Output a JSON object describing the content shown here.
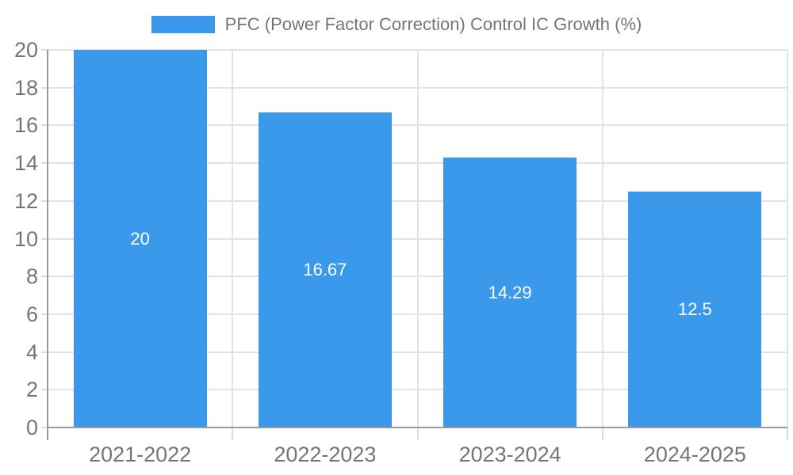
{
  "chart_data": {
    "type": "bar",
    "title": "PFC (Power Factor Correction) Control IC Growth (%)",
    "categories": [
      "2021-2022",
      "2022-2023",
      "2023-2024",
      "2024-2025"
    ],
    "values": [
      20,
      16.67,
      14.29,
      12.5
    ],
    "value_labels": [
      "20",
      "16.67",
      "14.29",
      "12.5"
    ],
    "xlabel": "",
    "ylabel": "",
    "ylim": [
      0,
      20
    ],
    "ytick_step": 2,
    "ytick_labels": [
      "0",
      "2",
      "4",
      "6",
      "8",
      "10",
      "12",
      "14",
      "16",
      "18",
      "20"
    ],
    "grid": true,
    "legend_position": "top-center",
    "colors": {
      "bar": "#3b99ec",
      "bar_label": "#ffffff",
      "axis_line": "#9a9a9a",
      "gridline": "#e3e3e3",
      "tick_text": "#757575",
      "legend_text": "#757575",
      "background": "#ffffff"
    }
  },
  "legend": {
    "swatch_icon": "legend-color-swatch",
    "label": "PFC (Power Factor Correction) Control IC Growth (%)"
  }
}
